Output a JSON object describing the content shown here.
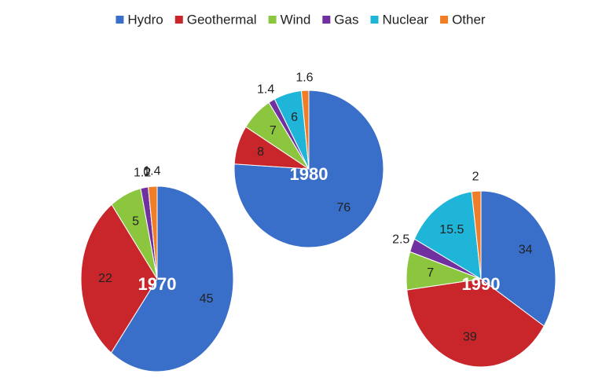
{
  "chart_data": [
    {
      "type": "pie",
      "title": "1970",
      "categories": [
        "Hydro",
        "Geothermal",
        "Wind",
        "Gas",
        "Nuclear",
        "Other"
      ],
      "values": [
        45,
        22,
        5,
        1.2,
        0,
        1.4
      ],
      "colors": [
        "#3a6fc9",
        "#c8262b",
        "#8cc63f",
        "#7030a0",
        "#1fb5d9",
        "#f07e26"
      ]
    },
    {
      "type": "pie",
      "title": "1980",
      "categories": [
        "Hydro",
        "Geothermal",
        "Wind",
        "Gas",
        "Nuclear",
        "Other"
      ],
      "values": [
        76,
        8,
        7,
        1.4,
        6,
        1.6
      ],
      "colors": [
        "#3a6fc9",
        "#c8262b",
        "#8cc63f",
        "#7030a0",
        "#1fb5d9",
        "#f07e26"
      ]
    },
    {
      "type": "pie",
      "title": "1990",
      "categories": [
        "Hydro",
        "Geothermal",
        "Wind",
        "Gas",
        "Nuclear",
        "Other"
      ],
      "values": [
        34,
        39,
        7,
        2.5,
        15.5,
        2
      ],
      "colors": [
        "#3a6fc9",
        "#c8262b",
        "#8cc63f",
        "#7030a0",
        "#1fb5d9",
        "#f07e26"
      ]
    }
  ]
}
